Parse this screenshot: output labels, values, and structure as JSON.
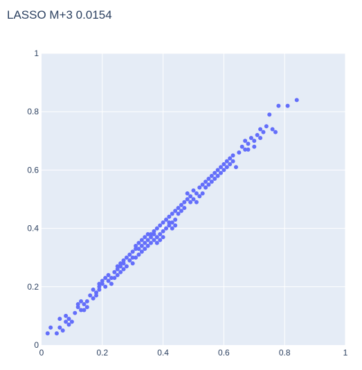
{
  "chart_data": {
    "type": "scatter",
    "title": "LASSO M+3  0.0154",
    "xlabel": "",
    "ylabel": "",
    "xlim": [
      0,
      1
    ],
    "ylim": [
      0,
      1
    ],
    "x_ticks": [
      "0",
      "0.2",
      "0.4",
      "0.6",
      "0.8",
      "1"
    ],
    "y_ticks": [
      "0",
      "0.2",
      "0.4",
      "0.6",
      "0.8",
      "1"
    ],
    "grid": true,
    "colors": {
      "marker": "#636efa",
      "plot_bg": "#e5ecf6",
      "grid": "#ffffff",
      "text": "#2a3f5f"
    },
    "series": [
      {
        "x": [
          0.02,
          0.03,
          0.05,
          0.06,
          0.06,
          0.07,
          0.08,
          0.08,
          0.09,
          0.09,
          0.1,
          0.11,
          0.12,
          0.12,
          0.13,
          0.13,
          0.14,
          0.14,
          0.15,
          0.15,
          0.16,
          0.17,
          0.17,
          0.18,
          0.18,
          0.19,
          0.19,
          0.19,
          0.2,
          0.2,
          0.21,
          0.21,
          0.22,
          0.22,
          0.23,
          0.23,
          0.24,
          0.24,
          0.25,
          0.25,
          0.25,
          0.26,
          0.26,
          0.26,
          0.27,
          0.27,
          0.27,
          0.28,
          0.28,
          0.29,
          0.29,
          0.3,
          0.3,
          0.3,
          0.31,
          0.31,
          0.31,
          0.32,
          0.32,
          0.32,
          0.33,
          0.33,
          0.33,
          0.34,
          0.34,
          0.34,
          0.35,
          0.35,
          0.35,
          0.36,
          0.36,
          0.36,
          0.37,
          0.37,
          0.37,
          0.38,
          0.38,
          0.38,
          0.39,
          0.39,
          0.39,
          0.4,
          0.4,
          0.4,
          0.41,
          0.41,
          0.42,
          0.42,
          0.42,
          0.43,
          0.43,
          0.43,
          0.44,
          0.44,
          0.44,
          0.45,
          0.45,
          0.46,
          0.46,
          0.47,
          0.47,
          0.48,
          0.48,
          0.49,
          0.49,
          0.5,
          0.5,
          0.51,
          0.51,
          0.52,
          0.52,
          0.53,
          0.53,
          0.54,
          0.54,
          0.55,
          0.55,
          0.56,
          0.56,
          0.57,
          0.57,
          0.58,
          0.58,
          0.59,
          0.59,
          0.6,
          0.6,
          0.61,
          0.61,
          0.62,
          0.62,
          0.63,
          0.63,
          0.64,
          0.65,
          0.66,
          0.67,
          0.67,
          0.68,
          0.68,
          0.69,
          0.7,
          0.7,
          0.71,
          0.72,
          0.72,
          0.73,
          0.74,
          0.75,
          0.76,
          0.77,
          0.78,
          0.81,
          0.84
        ],
        "y": [
          0.04,
          0.06,
          0.04,
          0.06,
          0.09,
          0.05,
          0.08,
          0.1,
          0.07,
          0.09,
          0.08,
          0.11,
          0.13,
          0.14,
          0.12,
          0.15,
          0.14,
          0.12,
          0.15,
          0.13,
          0.17,
          0.16,
          0.19,
          0.18,
          0.17,
          0.2,
          0.19,
          0.21,
          0.21,
          0.22,
          0.2,
          0.23,
          0.22,
          0.24,
          0.23,
          0.21,
          0.25,
          0.23,
          0.27,
          0.24,
          0.26,
          0.28,
          0.25,
          0.27,
          0.29,
          0.26,
          0.28,
          0.3,
          0.27,
          0.29,
          0.31,
          0.28,
          0.32,
          0.3,
          0.34,
          0.3,
          0.33,
          0.31,
          0.35,
          0.33,
          0.36,
          0.32,
          0.34,
          0.37,
          0.35,
          0.33,
          0.38,
          0.34,
          0.36,
          0.38,
          0.35,
          0.37,
          0.39,
          0.36,
          0.38,
          0.4,
          0.37,
          0.35,
          0.41,
          0.38,
          0.36,
          0.42,
          0.39,
          0.37,
          0.43,
          0.4,
          0.42,
          0.44,
          0.41,
          0.45,
          0.42,
          0.4,
          0.46,
          0.43,
          0.41,
          0.47,
          0.45,
          0.48,
          0.46,
          0.49,
          0.47,
          0.5,
          0.52,
          0.51,
          0.49,
          0.53,
          0.5,
          0.52,
          0.49,
          0.54,
          0.51,
          0.55,
          0.52,
          0.56,
          0.54,
          0.57,
          0.55,
          0.58,
          0.56,
          0.59,
          0.57,
          0.6,
          0.58,
          0.61,
          0.59,
          0.62,
          0.6,
          0.63,
          0.61,
          0.64,
          0.62,
          0.63,
          0.65,
          0.61,
          0.66,
          0.68,
          0.67,
          0.7,
          0.69,
          0.67,
          0.71,
          0.7,
          0.68,
          0.72,
          0.74,
          0.71,
          0.73,
          0.75,
          0.79,
          0.74,
          0.73,
          0.82,
          0.82,
          0.84
        ]
      }
    ]
  }
}
